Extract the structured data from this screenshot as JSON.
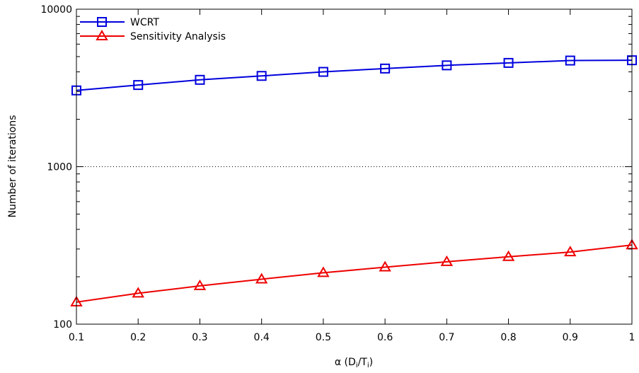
{
  "chart_data": {
    "type": "line",
    "x": [
      0.1,
      0.2,
      0.3,
      0.4,
      0.5,
      0.6,
      0.7,
      0.8,
      0.9,
      1.0
    ],
    "x_tick_labels": [
      "0.1",
      "0.2",
      "0.3",
      "0.4",
      "0.5",
      "0.6",
      "0.7",
      "0.8",
      "0.9",
      "1"
    ],
    "xlim": [
      0.1,
      1.0
    ],
    "y_scale": "log",
    "ylim": [
      100,
      10000
    ],
    "y_ticks": [
      100,
      1000,
      10000
    ],
    "y_tick_labels": [
      "100",
      "1000",
      "10000"
    ],
    "ylabel": "Number of iterations",
    "xlabel": {
      "prefix": "α (D",
      "sub1": "i",
      "mid": "/T",
      "sub2": "i",
      "suffix": ")"
    },
    "grid": "dotted horizontal line at 1000",
    "legend_position": "top-left",
    "series": [
      {
        "name": "WCRT",
        "color": "#0000dd",
        "marker": "square",
        "values": [
          3050,
          3300,
          3560,
          3770,
          4000,
          4200,
          4400,
          4560,
          4720,
          4740
        ]
      },
      {
        "name": "Sensitivity Analysis",
        "color": "#ee0000",
        "marker": "triangle",
        "values": [
          138,
          157,
          175,
          193,
          212,
          230,
          249,
          268,
          287,
          318
        ]
      }
    ]
  }
}
